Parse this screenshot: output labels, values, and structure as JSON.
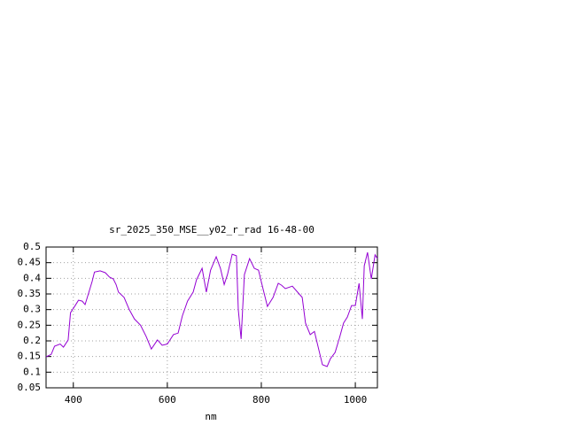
{
  "chart_data": {
    "type": "line",
    "title": "sr_2025_350_MSE__y02_r_rad 16-48-00",
    "x_label": "nm",
    "color": "#9400d3",
    "grid": true,
    "x": [
      342,
      353,
      360,
      372,
      379,
      389,
      394,
      404,
      411,
      419,
      425,
      432,
      440,
      445,
      457,
      468,
      477,
      485,
      491,
      496,
      508,
      519,
      530,
      543,
      555,
      566,
      579,
      589,
      600,
      613,
      623,
      632,
      643,
      655,
      662,
      674,
      683,
      692,
      704,
      713,
      721,
      728,
      738,
      747,
      751,
      757,
      764,
      775,
      785,
      794,
      804,
      813,
      825,
      836,
      843,
      851,
      866,
      877,
      887,
      894,
      904,
      913,
      921,
      930,
      940,
      947,
      957,
      966,
      975,
      983,
      992,
      1000,
      1008,
      1015,
      1019,
      1026,
      1034,
      1042,
      1047
    ],
    "values": [
      0.149,
      0.157,
      0.183,
      0.19,
      0.18,
      0.203,
      0.29,
      0.313,
      0.33,
      0.327,
      0.316,
      0.35,
      0.39,
      0.42,
      0.424,
      0.418,
      0.404,
      0.398,
      0.38,
      0.356,
      0.339,
      0.3,
      0.27,
      0.25,
      0.214,
      0.174,
      0.203,
      0.186,
      0.19,
      0.22,
      0.225,
      0.28,
      0.327,
      0.356,
      0.395,
      0.432,
      0.356,
      0.426,
      0.469,
      0.432,
      0.38,
      0.412,
      0.477,
      0.472,
      0.3,
      0.206,
      0.412,
      0.463,
      0.432,
      0.426,
      0.364,
      0.31,
      0.339,
      0.384,
      0.378,
      0.367,
      0.375,
      0.356,
      0.339,
      0.257,
      0.22,
      0.23,
      0.18,
      0.124,
      0.118,
      0.143,
      0.163,
      0.208,
      0.257,
      0.276,
      0.313,
      0.313,
      0.384,
      0.27,
      0.44,
      0.483,
      0.398,
      0.475,
      0.463
    ],
    "xlim": [
      342,
      1047
    ],
    "xticks": [
      400,
      600,
      800,
      1000
    ],
    "ylim": [
      0.05,
      0.5
    ],
    "yticks": [
      0.05,
      0.1,
      0.15,
      0.2,
      0.25,
      0.3,
      0.35,
      0.4,
      0.45,
      0.5
    ]
  }
}
